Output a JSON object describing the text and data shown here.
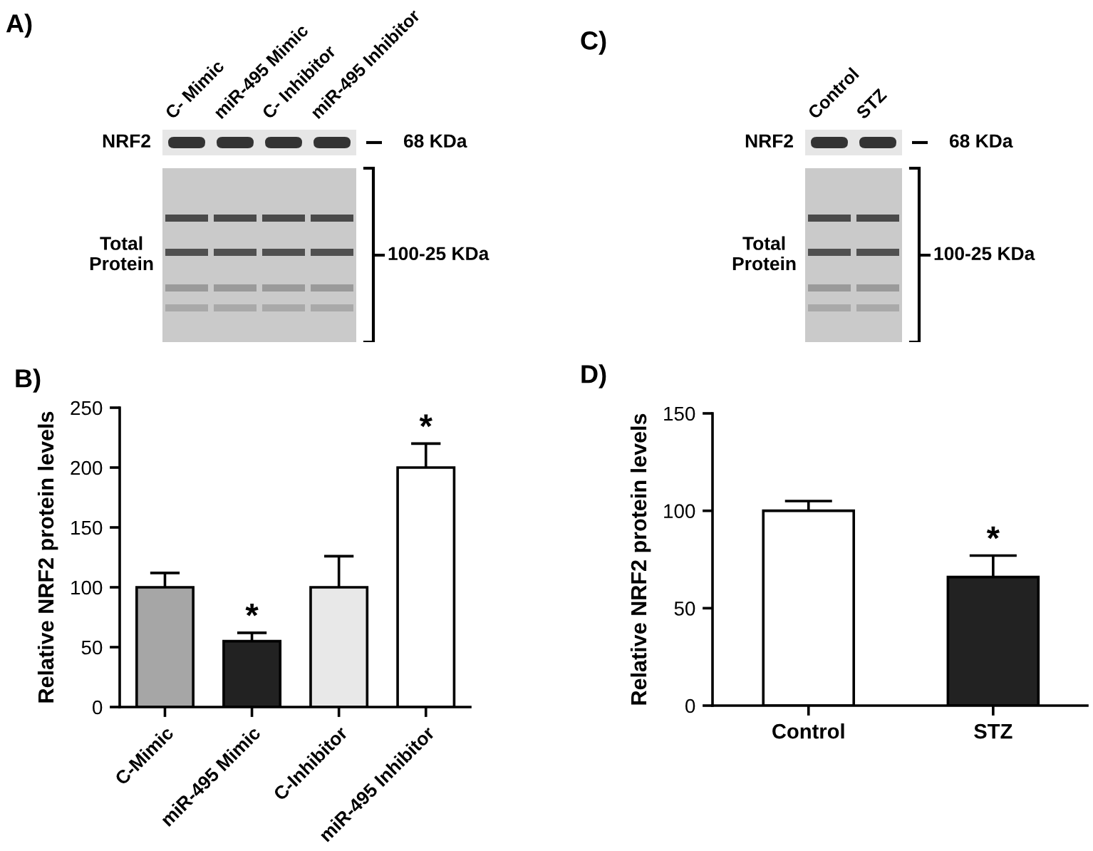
{
  "chart_data": [
    {
      "type": "other",
      "title": "A)",
      "categories": [
        "C- Mimic",
        "miR-495 Mimic",
        "C- Inhibitor",
        "miR-495 Inhibitor"
      ],
      "annotations": [
        "NRF2",
        "68 KDa",
        "Total Protein",
        "100-25 KDa"
      ]
    },
    {
      "type": "other",
      "title": "C)",
      "categories": [
        "Control",
        "STZ"
      ],
      "annotations": [
        "NRF2",
        "68 KDa",
        "Total Protein",
        "100-25 KDa"
      ]
    },
    {
      "type": "bar",
      "title": "B)",
      "ylabel": "Relative NRF2 protein levels",
      "categories": [
        "C-Mimic",
        "miR-495 Mimic",
        "C-Inhibitor",
        "miR-495 Inhibitor"
      ],
      "values": [
        100,
        55,
        100,
        200
      ],
      "colors": [
        "#a6a6a6",
        "#222222",
        "#e8e8e8",
        "#ffffff"
      ],
      "errors": [
        [
          100,
          112
        ],
        [
          55,
          62
        ],
        [
          100,
          126
        ],
        [
          200,
          220
        ]
      ],
      "ylim": [
        0,
        250
      ],
      "yticks": [
        0,
        50,
        100,
        150,
        200,
        250
      ],
      "annotations": [
        {
          "text": "*",
          "x": "miR-495 Mimic",
          "y": 55
        },
        {
          "text": "*",
          "x": "miR-495 Inhibitor",
          "y": 200
        }
      ]
    },
    {
      "type": "bar",
      "title": "D)",
      "ylabel": "Relative NRF2 protein levels",
      "categories": [
        "Control",
        "STZ"
      ],
      "values": [
        100,
        66
      ],
      "colors": [
        "#ffffff",
        "#222222"
      ],
      "errors": [
        [
          100,
          105
        ],
        [
          66,
          77
        ]
      ],
      "ylim": [
        0,
        150
      ],
      "yticks": [
        0,
        50,
        100,
        150
      ],
      "annotations": [
        {
          "text": "*",
          "x": "STZ",
          "y": 66
        }
      ]
    }
  ]
}
